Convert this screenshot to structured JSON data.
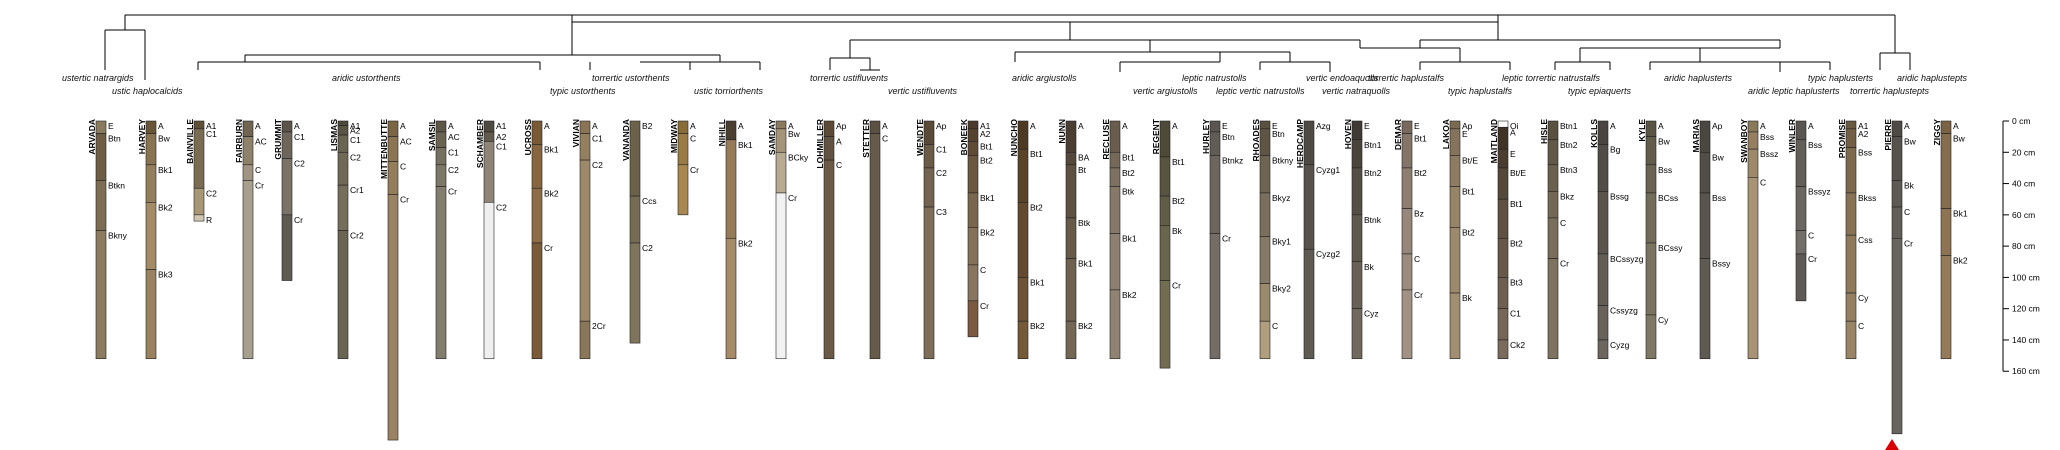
{
  "subgroups": [
    "ustertic natrargids",
    "ustic haplocalcids",
    "aridic ustorthents",
    "torrertic ustorthents",
    "typic ustorthents",
    "ustic torriorthents",
    "torrertic ustifluvents",
    "vertic ustifluvents",
    "aridic argiustolls",
    "leptic natrustolls",
    "vertic argiustolls",
    "leptic vertic natrustolls",
    "vertic endoaquolls",
    "vertic natraquolls",
    "torrertic haplustalfs",
    "typic haplustalfs",
    "leptic torrertic natrustalfs",
    "typic epiaquerts",
    "aridic haplusterts",
    "typic haplusterts",
    "aridic leptic haplusterts",
    "torrertic haplustepts",
    "aridic haplustepts"
  ],
  "depth_axis": {
    "max_cm": 160,
    "labels": [
      "0 cm",
      "20 cm",
      "40 cm",
      "60 cm",
      "80 cm",
      "100 cm",
      "120 cm",
      "140 cm",
      "160 cm"
    ]
  },
  "profiles": [
    {
      "name": "ARVADA",
      "hz": [
        [
          "E",
          0,
          8,
          "#8a7a5e"
        ],
        [
          "Btn",
          8,
          38,
          "#6e5e44"
        ],
        [
          "Btkn",
          38,
          70,
          "#7d6d52"
        ],
        [
          "Bkny",
          70,
          152,
          "#8b7b5f"
        ]
      ]
    },
    {
      "name": "HARVEY",
      "hz": [
        [
          "A",
          0,
          8,
          "#6a5538"
        ],
        [
          "Bw",
          8,
          28,
          "#8a7350"
        ],
        [
          "Bk1",
          28,
          52,
          "#957e5b"
        ],
        [
          "Bk2",
          52,
          95,
          "#a38b66"
        ],
        [
          "Bk3",
          95,
          152,
          "#9a8260"
        ]
      ]
    },
    {
      "name": "BAINVILLE",
      "hz": [
        [
          "A1",
          0,
          5,
          "#5e5138"
        ],
        [
          "C1",
          5,
          43,
          "#7a6c52"
        ],
        [
          "C2",
          43,
          60,
          "#a89777"
        ],
        [
          "R",
          60,
          64,
          "#cfc6b2"
        ]
      ]
    },
    {
      "name": "FAIRBURN",
      "hz": [
        [
          "A",
          0,
          10,
          "#6f6550"
        ],
        [
          "AC",
          10,
          28,
          "#8e826b"
        ],
        [
          "C",
          28,
          38,
          "#a09482"
        ],
        [
          "Cr",
          38,
          152,
          "#a8a08e"
        ]
      ]
    },
    {
      "name": "GRUMMIT",
      "hz": [
        [
          "A",
          0,
          7,
          "#5c5448"
        ],
        [
          "C1",
          7,
          24,
          "#6e665a"
        ],
        [
          "C2",
          24,
          60,
          "#7a7366"
        ],
        [
          "Cr",
          60,
          102,
          "#5f5a52"
        ]
      ]
    },
    {
      "name": "LISMAS",
      "hz": [
        [
          "A1",
          0,
          3,
          "#4f4a3c"
        ],
        [
          "A2",
          3,
          9,
          "#5a5444"
        ],
        [
          "C1",
          9,
          20,
          "#6a6452"
        ],
        [
          "C2",
          20,
          41,
          "#6f6956"
        ],
        [
          "Cr1",
          41,
          70,
          "#756e5b"
        ],
        [
          "Cr2",
          70,
          152,
          "#6a6452"
        ]
      ]
    },
    {
      "name": "MITTENBUTTE",
      "hz": [
        [
          "A",
          0,
          10,
          "#7a6545"
        ],
        [
          "AC",
          10,
          26,
          "#8c7553"
        ],
        [
          "C",
          26,
          47,
          "#957d5a"
        ],
        [
          "Cr",
          47,
          204,
          "#9a8262"
        ]
      ]
    },
    {
      "name": "SAMSIL",
      "hz": [
        [
          "A",
          0,
          7,
          "#5e5646"
        ],
        [
          "AC",
          7,
          17,
          "#6b6352"
        ],
        [
          "C1",
          17,
          28,
          "#767060"
        ],
        [
          "C2",
          28,
          42,
          "#7d7767"
        ],
        [
          "Cr",
          42,
          152,
          "#837d6d"
        ]
      ]
    },
    {
      "name": "SCHAMBER",
      "hz": [
        [
          "A1",
          0,
          7,
          "#4f4a3f"
        ],
        [
          "A2",
          7,
          13,
          "#615a4d"
        ],
        [
          "C1",
          13,
          52,
          "#8e8478"
        ],
        [
          "C2",
          52,
          152,
          "#efefef"
        ]
      ]
    },
    {
      "name": "UCROSS",
      "hz": [
        [
          "A",
          0,
          15,
          "#7a5a35"
        ],
        [
          "Bk1",
          15,
          43,
          "#87663f"
        ],
        [
          "Bk2",
          43,
          78,
          "#8e6c45"
        ],
        [
          "Cr",
          78,
          152,
          "#7a5a37"
        ]
      ]
    },
    {
      "name": "VIVIAN",
      "hz": [
        [
          "A",
          0,
          8,
          "#8a7455"
        ],
        [
          "C1",
          8,
          25,
          "#94805f"
        ],
        [
          "C2",
          25,
          128,
          "#9d896a"
        ],
        [
          "2Cr",
          128,
          152,
          "#8a7658"
        ]
      ]
    },
    {
      "name": "VANANDA",
      "hz": [
        [
          "B2",
          0,
          48,
          "#6b6249"
        ],
        [
          "Ccs",
          48,
          78,
          "#756c53"
        ],
        [
          "C2",
          78,
          142,
          "#7e755c"
        ]
      ]
    },
    {
      "name": "MIDWAY",
      "hz": [
        [
          "A",
          0,
          8,
          "#8a6c38"
        ],
        [
          "C",
          8,
          28,
          "#9b7b45"
        ],
        [
          "Cr",
          28,
          60,
          "#a88850"
        ]
      ]
    },
    {
      "name": "NIHILL",
      "hz": [
        [
          "A",
          0,
          12,
          "#4a3f30"
        ],
        [
          "Bk1",
          12,
          75,
          "#957b5a"
        ],
        [
          "Bk2",
          75,
          152,
          "#a58b68"
        ]
      ]
    },
    {
      "name": "SAMDAY",
      "hz": [
        [
          "A",
          0,
          5,
          "#8b7a60"
        ],
        [
          "Bw",
          5,
          20,
          "#a49478"
        ],
        [
          "BCky",
          20,
          46,
          "#b8aa92"
        ],
        [
          "Cr",
          46,
          152,
          "#f2f2f2"
        ]
      ]
    },
    {
      "name": "LOHMILLER",
      "hz": [
        [
          "Ap",
          0,
          10,
          "#5b4a36"
        ],
        [
          "A",
          10,
          25,
          "#625241"
        ],
        [
          "C",
          25,
          152,
          "#6a5a46"
        ]
      ]
    },
    {
      "name": "STETTER",
      "hz": [
        [
          "A",
          0,
          8,
          "#5b5041"
        ],
        [
          "C",
          8,
          152,
          "#665a4a"
        ]
      ]
    },
    {
      "name": "WENDTE",
      "hz": [
        [
          "Ap",
          0,
          15,
          "#5a4a38"
        ],
        [
          "C1",
          15,
          30,
          "#6a5a46"
        ],
        [
          "C2",
          30,
          55,
          "#746350"
        ],
        [
          "C3",
          55,
          152,
          "#7e6d58"
        ]
      ]
    },
    {
      "name": "BONEEK",
      "hz": [
        [
          "A1",
          0,
          5,
          "#4a3a2a"
        ],
        [
          "A2",
          5,
          13,
          "#55432f"
        ],
        [
          "Bt1",
          13,
          22,
          "#5f4c37"
        ],
        [
          "Bt2",
          22,
          46,
          "#6b573f"
        ],
        [
          "Bk1",
          46,
          68,
          "#7a664d"
        ],
        [
          "Bk2",
          68,
          92,
          "#85715a"
        ],
        [
          "C",
          92,
          115,
          "#8a7660"
        ],
        [
          "Cr",
          115,
          138,
          "#7a5a40"
        ]
      ]
    },
    {
      "name": "NUNCHO",
      "hz": [
        [
          "A",
          0,
          18,
          "#4e3a22"
        ],
        [
          "Bt1",
          18,
          52,
          "#5a4328"
        ],
        [
          "Bt2",
          52,
          100,
          "#634a2e"
        ],
        [
          "Bk1",
          100,
          128,
          "#6e5434"
        ],
        [
          "Bk2",
          128,
          152,
          "#755a38"
        ]
      ]
    },
    {
      "name": "NUNN",
      "hz": [
        [
          "A",
          0,
          20,
          "#4b3f33"
        ],
        [
          "BA",
          20,
          28,
          "#54483a"
        ],
        [
          "Bt",
          28,
          62,
          "#5e5142"
        ],
        [
          "Btk",
          62,
          88,
          "#675a49"
        ],
        [
          "Bk1",
          88,
          128,
          "#6e6150"
        ],
        [
          "Bk2",
          128,
          152,
          "#746756"
        ]
      ]
    },
    {
      "name": "RECLUSE",
      "hz": [
        [
          "A",
          0,
          20,
          "#6a5d4e"
        ],
        [
          "Bt1",
          20,
          30,
          "#76695a"
        ],
        [
          "Bt2",
          30,
          42,
          "#7e7162"
        ],
        [
          "Btk",
          42,
          72,
          "#86796a"
        ],
        [
          "Bk1",
          72,
          108,
          "#8d8070"
        ],
        [
          "Bk2",
          108,
          152,
          "#908373"
        ]
      ]
    },
    {
      "name": "REGENT",
      "hz": [
        [
          "A",
          0,
          23,
          "#4d4a38"
        ],
        [
          "Bt1",
          23,
          48,
          "#58543f"
        ],
        [
          "Bt2",
          48,
          67,
          "#615c46"
        ],
        [
          "Bk",
          67,
          102,
          "#6a654d"
        ],
        [
          "Cr",
          102,
          158,
          "#726c53"
        ]
      ]
    },
    {
      "name": "HURLEY",
      "hz": [
        [
          "E",
          0,
          7,
          "#5a5550"
        ],
        [
          "Btn",
          7,
          22,
          "#625c56"
        ],
        [
          "Btnkz",
          22,
          72,
          "#6b655e"
        ],
        [
          "Cr",
          72,
          152,
          "#746d66"
        ]
      ]
    },
    {
      "name": "RHOADES",
      "hz": [
        [
          "E",
          0,
          5,
          "#5a5040"
        ],
        [
          "Btn",
          5,
          22,
          "#5f5545"
        ],
        [
          "Btkny",
          22,
          46,
          "#6e6452"
        ],
        [
          "Bkyz",
          46,
          74,
          "#7a6f5c"
        ],
        [
          "Bky1",
          74,
          104,
          "#857a66"
        ],
        [
          "Bky2",
          104,
          128,
          "#9c8a6c"
        ],
        [
          "C",
          128,
          152,
          "#b09e7e"
        ]
      ]
    },
    {
      "name": "HERDCAMP",
      "hz": [
        [
          "Azg",
          0,
          28,
          "#4e4a42"
        ],
        [
          "Cyzg1",
          28,
          82,
          "#57524a"
        ],
        [
          "Cyzg2",
          82,
          152,
          "#5f5a52"
        ]
      ]
    },
    {
      "name": "HOVEN",
      "hz": [
        [
          "E",
          0,
          12,
          "#3f3a33"
        ],
        [
          "Btn1",
          12,
          30,
          "#4a443b"
        ],
        [
          "Btn2",
          30,
          60,
          "#554e44"
        ],
        [
          "Btnk",
          60,
          90,
          "#5f584d"
        ],
        [
          "Bk",
          90,
          120,
          "#696156"
        ],
        [
          "Cyz",
          120,
          152,
          "#71695d"
        ]
      ]
    },
    {
      "name": "DEMAR",
      "hz": [
        [
          "E",
          0,
          8,
          "#7a6a5e"
        ],
        [
          "Bt1",
          8,
          30,
          "#857569"
        ],
        [
          "Bt2",
          30,
          56,
          "#8e7e72"
        ],
        [
          "Bz",
          56,
          85,
          "#97877a"
        ],
        [
          "C",
          85,
          108,
          "#9c8c80"
        ],
        [
          "Cr",
          108,
          152,
          "#a29285"
        ]
      ]
    },
    {
      "name": "LAKOA",
      "hz": [
        [
          "Ap",
          0,
          5,
          "#7a6a52"
        ],
        [
          "E",
          5,
          22,
          "#85745b"
        ],
        [
          "Bt/E",
          22,
          42,
          "#8e7c62"
        ],
        [
          "Bt1",
          42,
          68,
          "#968468"
        ],
        [
          "Bt2",
          68,
          110,
          "#9d8a6d"
        ],
        [
          "Bk",
          110,
          152,
          "#a28f72"
        ]
      ]
    },
    {
      "name": "MAITLAND",
      "hz": [
        [
          "Oi",
          0,
          4,
          "#ffffff"
        ],
        [
          "A",
          4,
          18,
          "#3f3327"
        ],
        [
          "E",
          18,
          30,
          "#4a3d30"
        ],
        [
          "Bt/E",
          30,
          50,
          "#554739"
        ],
        [
          "Bt1",
          50,
          75,
          "#5f5042"
        ],
        [
          "Bt2",
          75,
          100,
          "#67584a"
        ],
        [
          "Bt3",
          100,
          120,
          "#6e5f51"
        ],
        [
          "C1",
          120,
          140,
          "#756657"
        ],
        [
          "Ck2",
          140,
          152,
          "#7a6b5c"
        ]
      ]
    },
    {
      "name": "HISLE",
      "hz": [
        [
          "Btn1",
          0,
          12,
          "#5a5040"
        ],
        [
          "Btn2",
          12,
          28,
          "#625847"
        ],
        [
          "Btn3",
          28,
          45,
          "#6a604e"
        ],
        [
          "Bkz",
          45,
          62,
          "#726854"
        ],
        [
          "C",
          62,
          88,
          "#786e5a"
        ],
        [
          "Cr",
          88,
          152,
          "#7d735f"
        ]
      ]
    },
    {
      "name": "KOLLS",
      "hz": [
        [
          "A",
          0,
          15,
          "#4a4540"
        ],
        [
          "Bg",
          15,
          45,
          "#524c46"
        ],
        [
          "Bssg",
          45,
          85,
          "#5a544d"
        ],
        [
          "BCssyzg",
          85,
          118,
          "#625c54"
        ],
        [
          "Cssyzg",
          118,
          140,
          "#68625a"
        ],
        [
          "Cyzg",
          140,
          152,
          "#6c665e"
        ]
      ]
    },
    {
      "name": "KYLE",
      "hz": [
        [
          "A",
          0,
          10,
          "#5a5444"
        ],
        [
          "Bw",
          10,
          28,
          "#635c4b"
        ],
        [
          "Bss",
          28,
          46,
          "#6b6452"
        ],
        [
          "BCss",
          46,
          78,
          "#736c59"
        ],
        [
          "BCssy",
          78,
          124,
          "#7a735f"
        ],
        [
          "Cy",
          124,
          152,
          "#7f7864"
        ]
      ]
    },
    {
      "name": "MARIAS",
      "hz": [
        [
          "Ap",
          0,
          20,
          "#4a4640"
        ],
        [
          "Bw",
          20,
          46,
          "#524e47"
        ],
        [
          "Bss",
          46,
          88,
          "#59554e"
        ],
        [
          "Bssy",
          88,
          152,
          "#5f5b53"
        ]
      ]
    },
    {
      "name": "SWANBOY",
      "hz": [
        [
          "A",
          0,
          7,
          "#8a7a5c"
        ],
        [
          "Bss",
          7,
          18,
          "#957f60"
        ],
        [
          "Bssz",
          18,
          36,
          "#9e8a6a"
        ],
        [
          "C",
          36,
          152,
          "#a89474"
        ]
      ]
    },
    {
      "name": "WINLER",
      "hz": [
        [
          "A",
          0,
          12,
          "#5a5550"
        ],
        [
          "Bss",
          12,
          42,
          "#635e58"
        ],
        [
          "Bssyz",
          42,
          70,
          "#6b6660"
        ],
        [
          "C",
          70,
          85,
          "#736e68"
        ],
        [
          "Cr",
          85,
          115,
          "#5f5a55"
        ]
      ]
    },
    {
      "name": "PROMISE",
      "hz": [
        [
          "A1",
          0,
          5,
          "#6a5a40"
        ],
        [
          "A2",
          5,
          17,
          "#735f45"
        ],
        [
          "Bss",
          17,
          46,
          "#7d6a4c"
        ],
        [
          "Bkss",
          46,
          73,
          "#877354"
        ],
        [
          "Css",
          73,
          110,
          "#8e7a5b"
        ],
        [
          "Cy",
          110,
          128,
          "#948060"
        ],
        [
          "C",
          128,
          152,
          "#998565"
        ]
      ]
    },
    {
      "name": "PIERRE",
      "hz": [
        [
          "A",
          0,
          10,
          "#4f4a45"
        ],
        [
          "Bw",
          10,
          38,
          "#57524c"
        ],
        [
          "Bk",
          38,
          55,
          "#5e5953"
        ],
        [
          "C",
          55,
          75,
          "#645e58"
        ],
        [
          "Cr",
          75,
          200,
          "#6a645e"
        ]
      ]
    },
    {
      "name": "ZIGGY",
      "hz": [
        [
          "A",
          0,
          8,
          "#7a6244"
        ],
        [
          "Bw",
          8,
          56,
          "#856c4c"
        ],
        [
          "Bk1",
          56,
          86,
          "#8e7453"
        ],
        [
          "Bk2",
          86,
          152,
          "#967b5a"
        ]
      ]
    }
  ]
}
